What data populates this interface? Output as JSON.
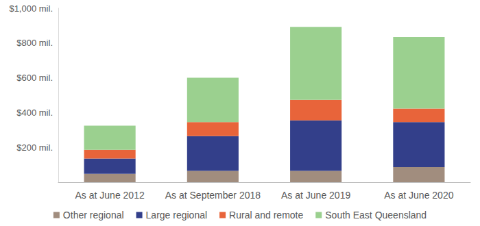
{
  "chart_data": {
    "type": "bar",
    "stacked": true,
    "grid": false,
    "legend": "bottom",
    "categories": [
      "As at June 2012",
      "As at September 2018",
      "As at June 2019",
      "As at June 2020"
    ],
    "series": [
      {
        "name": "Other regional",
        "color": "#a18d7e",
        "values": [
          48,
          65,
          65,
          87
        ]
      },
      {
        "name": "Large regional",
        "color": "#333f8a",
        "values": [
          88,
          200,
          290,
          258
        ]
      },
      {
        "name": "Rural and remote",
        "color": "#e8643a",
        "values": [
          50,
          80,
          118,
          78
        ]
      },
      {
        "name": "South East Queensland",
        "color": "#9bd08f",
        "values": [
          139,
          255,
          420,
          412
        ]
      }
    ],
    "ylim": [
      0,
      1000
    ],
    "yticks": [
      {
        "value": 200,
        "label": "$200 mil."
      },
      {
        "value": 400,
        "label": "$400 mil."
      },
      {
        "value": 600,
        "label": "$600 mil."
      },
      {
        "value": 800,
        "label": "$800 mil."
      },
      {
        "value": 1000,
        "label": "$1,000 mil."
      }
    ]
  }
}
